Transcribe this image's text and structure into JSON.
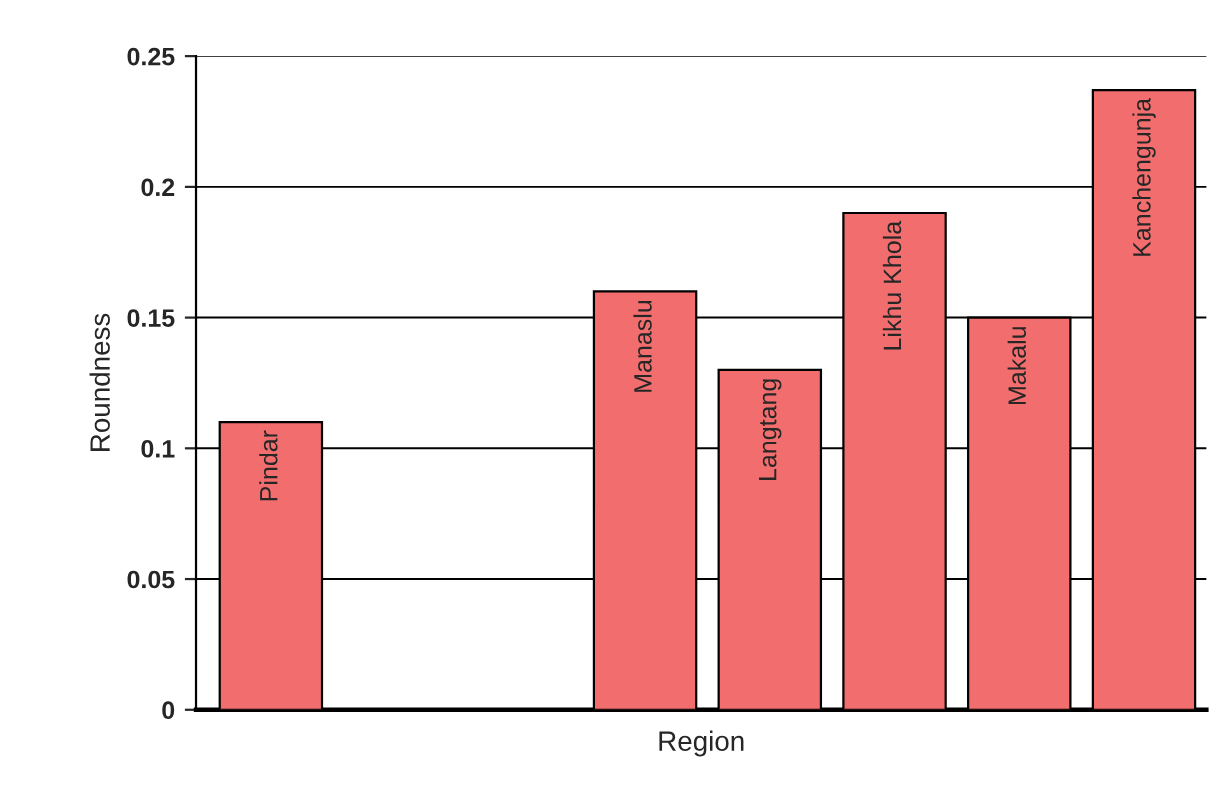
{
  "chart_data": {
    "type": "bar",
    "xlabel": "Region",
    "ylabel": "Roundness",
    "categories": [
      "Pindar",
      null,
      null,
      "Manaslu",
      "Langtang",
      "Likhu Khola",
      "Makalu",
      "Kanchengunja"
    ],
    "values": [
      0.11,
      null,
      null,
      0.16,
      0.13,
      0.19,
      0.15,
      0.237
    ],
    "color": "#f26d6d",
    "ylim": [
      0,
      0.25
    ],
    "yticks": [
      0,
      0.05,
      0.1,
      0.15,
      0.2,
      0.25
    ],
    "grid": "y",
    "tick_labels": "y"
  }
}
